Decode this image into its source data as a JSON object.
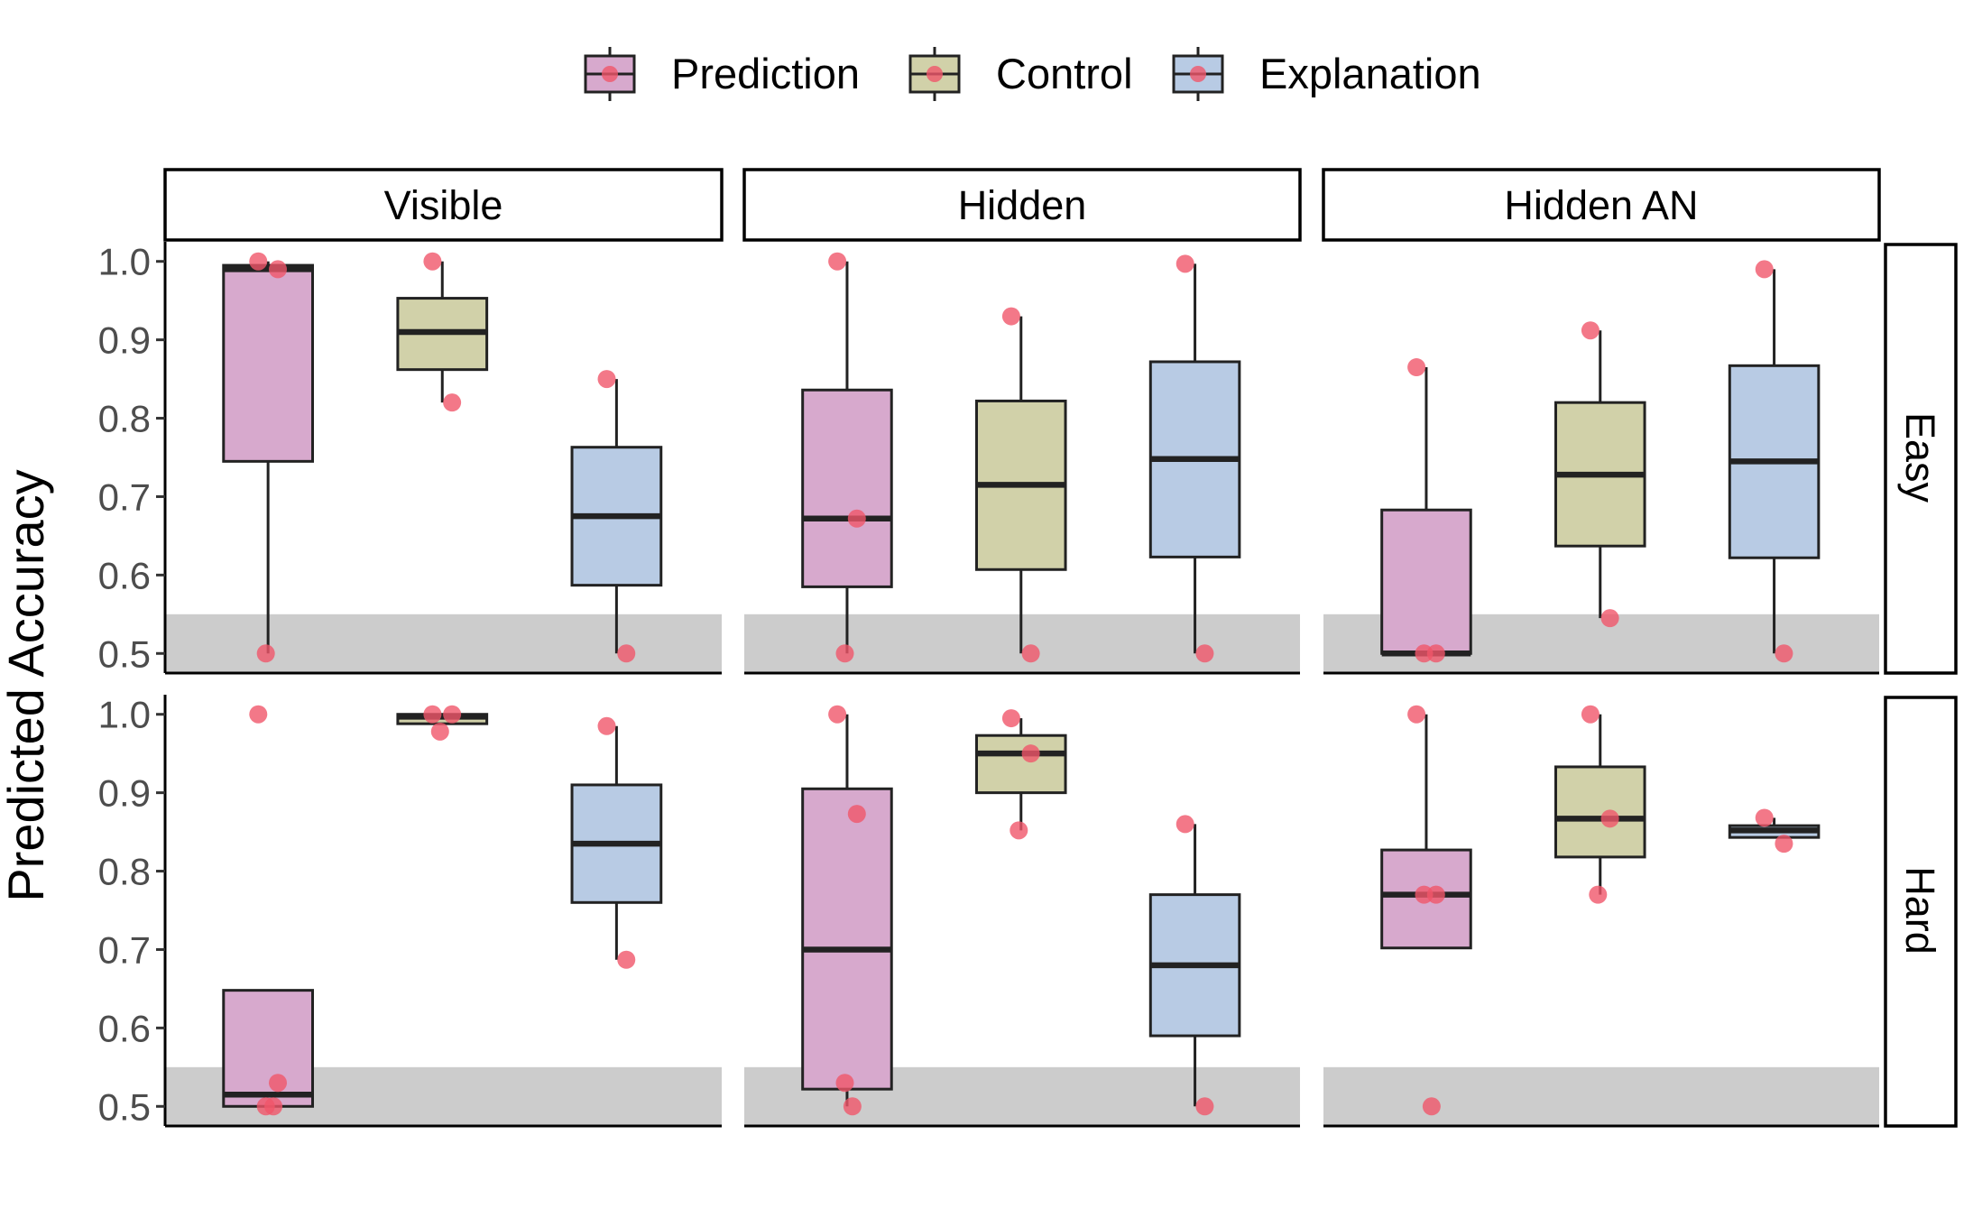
{
  "chart_data": {
    "type": "box",
    "ylabel": "Predicted Accuracy",
    "ylim": [
      0.475,
      1.025
    ],
    "yticks": [
      0.5,
      0.6,
      0.7,
      0.8,
      0.9,
      1.0
    ],
    "ytick_labels": [
      "0.5",
      "0.6",
      "0.7",
      "0.8",
      "0.9",
      "1.0"
    ],
    "shaded_band": [
      0.475,
      0.55
    ],
    "legend": {
      "position": "top",
      "entries": [
        {
          "name": "Prediction",
          "color": "#d7a9cd"
        },
        {
          "name": "Control",
          "color": "#d1d1a9"
        },
        {
          "name": "Explanation",
          "color": "#b8cbe4"
        }
      ]
    },
    "point_color": "#f0566a",
    "columns": [
      "Visible",
      "Hidden",
      "Hidden AN"
    ],
    "rows": [
      "Easy",
      "Hard"
    ],
    "panels": [
      {
        "row": "Easy",
        "column": "Visible",
        "boxes": [
          {
            "series": "Prediction",
            "min": 0.5,
            "q1": 0.745,
            "median": 0.99,
            "q3": 0.995,
            "max": 1.0,
            "points": [
              1.0,
              0.99,
              0.5
            ]
          },
          {
            "series": "Control",
            "min": 0.82,
            "q1": 0.862,
            "median": 0.91,
            "q3": 0.953,
            "max": 1.0,
            "points": [
              1.0,
              0.82
            ]
          },
          {
            "series": "Explanation",
            "min": 0.5,
            "q1": 0.587,
            "median": 0.675,
            "q3": 0.763,
            "max": 0.85,
            "points": [
              0.85,
              0.5
            ]
          }
        ]
      },
      {
        "row": "Easy",
        "column": "Hidden",
        "boxes": [
          {
            "series": "Prediction",
            "min": 0.5,
            "q1": 0.585,
            "median": 0.672,
            "q3": 0.836,
            "max": 1.0,
            "points": [
              1.0,
              0.672,
              0.5
            ]
          },
          {
            "series": "Control",
            "min": 0.5,
            "q1": 0.607,
            "median": 0.715,
            "q3": 0.822,
            "max": 0.93,
            "points": [
              0.93,
              0.5
            ]
          },
          {
            "series": "Explanation",
            "min": 0.5,
            "q1": 0.623,
            "median": 0.748,
            "q3": 0.872,
            "max": 0.997,
            "points": [
              0.997,
              0.5
            ]
          }
        ]
      },
      {
        "row": "Easy",
        "column": "Hidden AN",
        "boxes": [
          {
            "series": "Prediction",
            "min": 0.5,
            "q1": 0.5,
            "median": 0.5,
            "q3": 0.683,
            "max": 0.865,
            "points": [
              0.865,
              0.5,
              0.5
            ]
          },
          {
            "series": "Control",
            "min": 0.545,
            "q1": 0.637,
            "median": 0.728,
            "q3": 0.82,
            "max": 0.912,
            "points": [
              0.912,
              0.545
            ]
          },
          {
            "series": "Explanation",
            "min": 0.5,
            "q1": 0.622,
            "median": 0.745,
            "q3": 0.867,
            "max": 0.99,
            "points": [
              0.99,
              0.5
            ]
          }
        ]
      },
      {
        "row": "Hard",
        "column": "Visible",
        "boxes": [
          {
            "series": "Prediction",
            "min": 0.5,
            "q1": 0.5,
            "median": 0.515,
            "q3": 0.648,
            "max": 0.648,
            "points": [
              1.0,
              0.53,
              0.5,
              0.5
            ]
          },
          {
            "series": "Control",
            "min": 0.988,
            "q1": 0.988,
            "median": 0.997,
            "q3": 1.0,
            "max": 1.0,
            "points": [
              1.0,
              1.0,
              0.978
            ]
          },
          {
            "series": "Explanation",
            "min": 0.687,
            "q1": 0.76,
            "median": 0.835,
            "q3": 0.91,
            "max": 0.985,
            "points": [
              0.985,
              0.687
            ]
          }
        ]
      },
      {
        "row": "Hard",
        "column": "Hidden",
        "boxes": [
          {
            "series": "Prediction",
            "min": 0.5,
            "q1": 0.522,
            "median": 0.7,
            "q3": 0.905,
            "max": 1.0,
            "points": [
              1.0,
              0.873,
              0.53,
              0.5
            ]
          },
          {
            "series": "Control",
            "min": 0.852,
            "q1": 0.9,
            "median": 0.95,
            "q3": 0.973,
            "max": 0.995,
            "points": [
              0.995,
              0.95,
              0.852
            ]
          },
          {
            "series": "Explanation",
            "min": 0.5,
            "q1": 0.59,
            "median": 0.68,
            "q3": 0.77,
            "max": 0.86,
            "points": [
              0.86,
              0.5
            ]
          }
        ]
      },
      {
        "row": "Hard",
        "column": "Hidden AN",
        "boxes": [
          {
            "series": "Prediction",
            "min": 0.702,
            "q1": 0.702,
            "median": 0.77,
            "q3": 0.827,
            "max": 1.0,
            "points": [
              1.0,
              0.77,
              0.77,
              0.5
            ]
          },
          {
            "series": "Control",
            "min": 0.77,
            "q1": 0.818,
            "median": 0.867,
            "q3": 0.933,
            "max": 1.0,
            "points": [
              1.0,
              0.867,
              0.77
            ]
          },
          {
            "series": "Explanation",
            "min": 0.843,
            "q1": 0.843,
            "median": 0.852,
            "q3": 0.858,
            "max": 0.868,
            "points": [
              0.868,
              0.835
            ]
          }
        ]
      }
    ]
  }
}
